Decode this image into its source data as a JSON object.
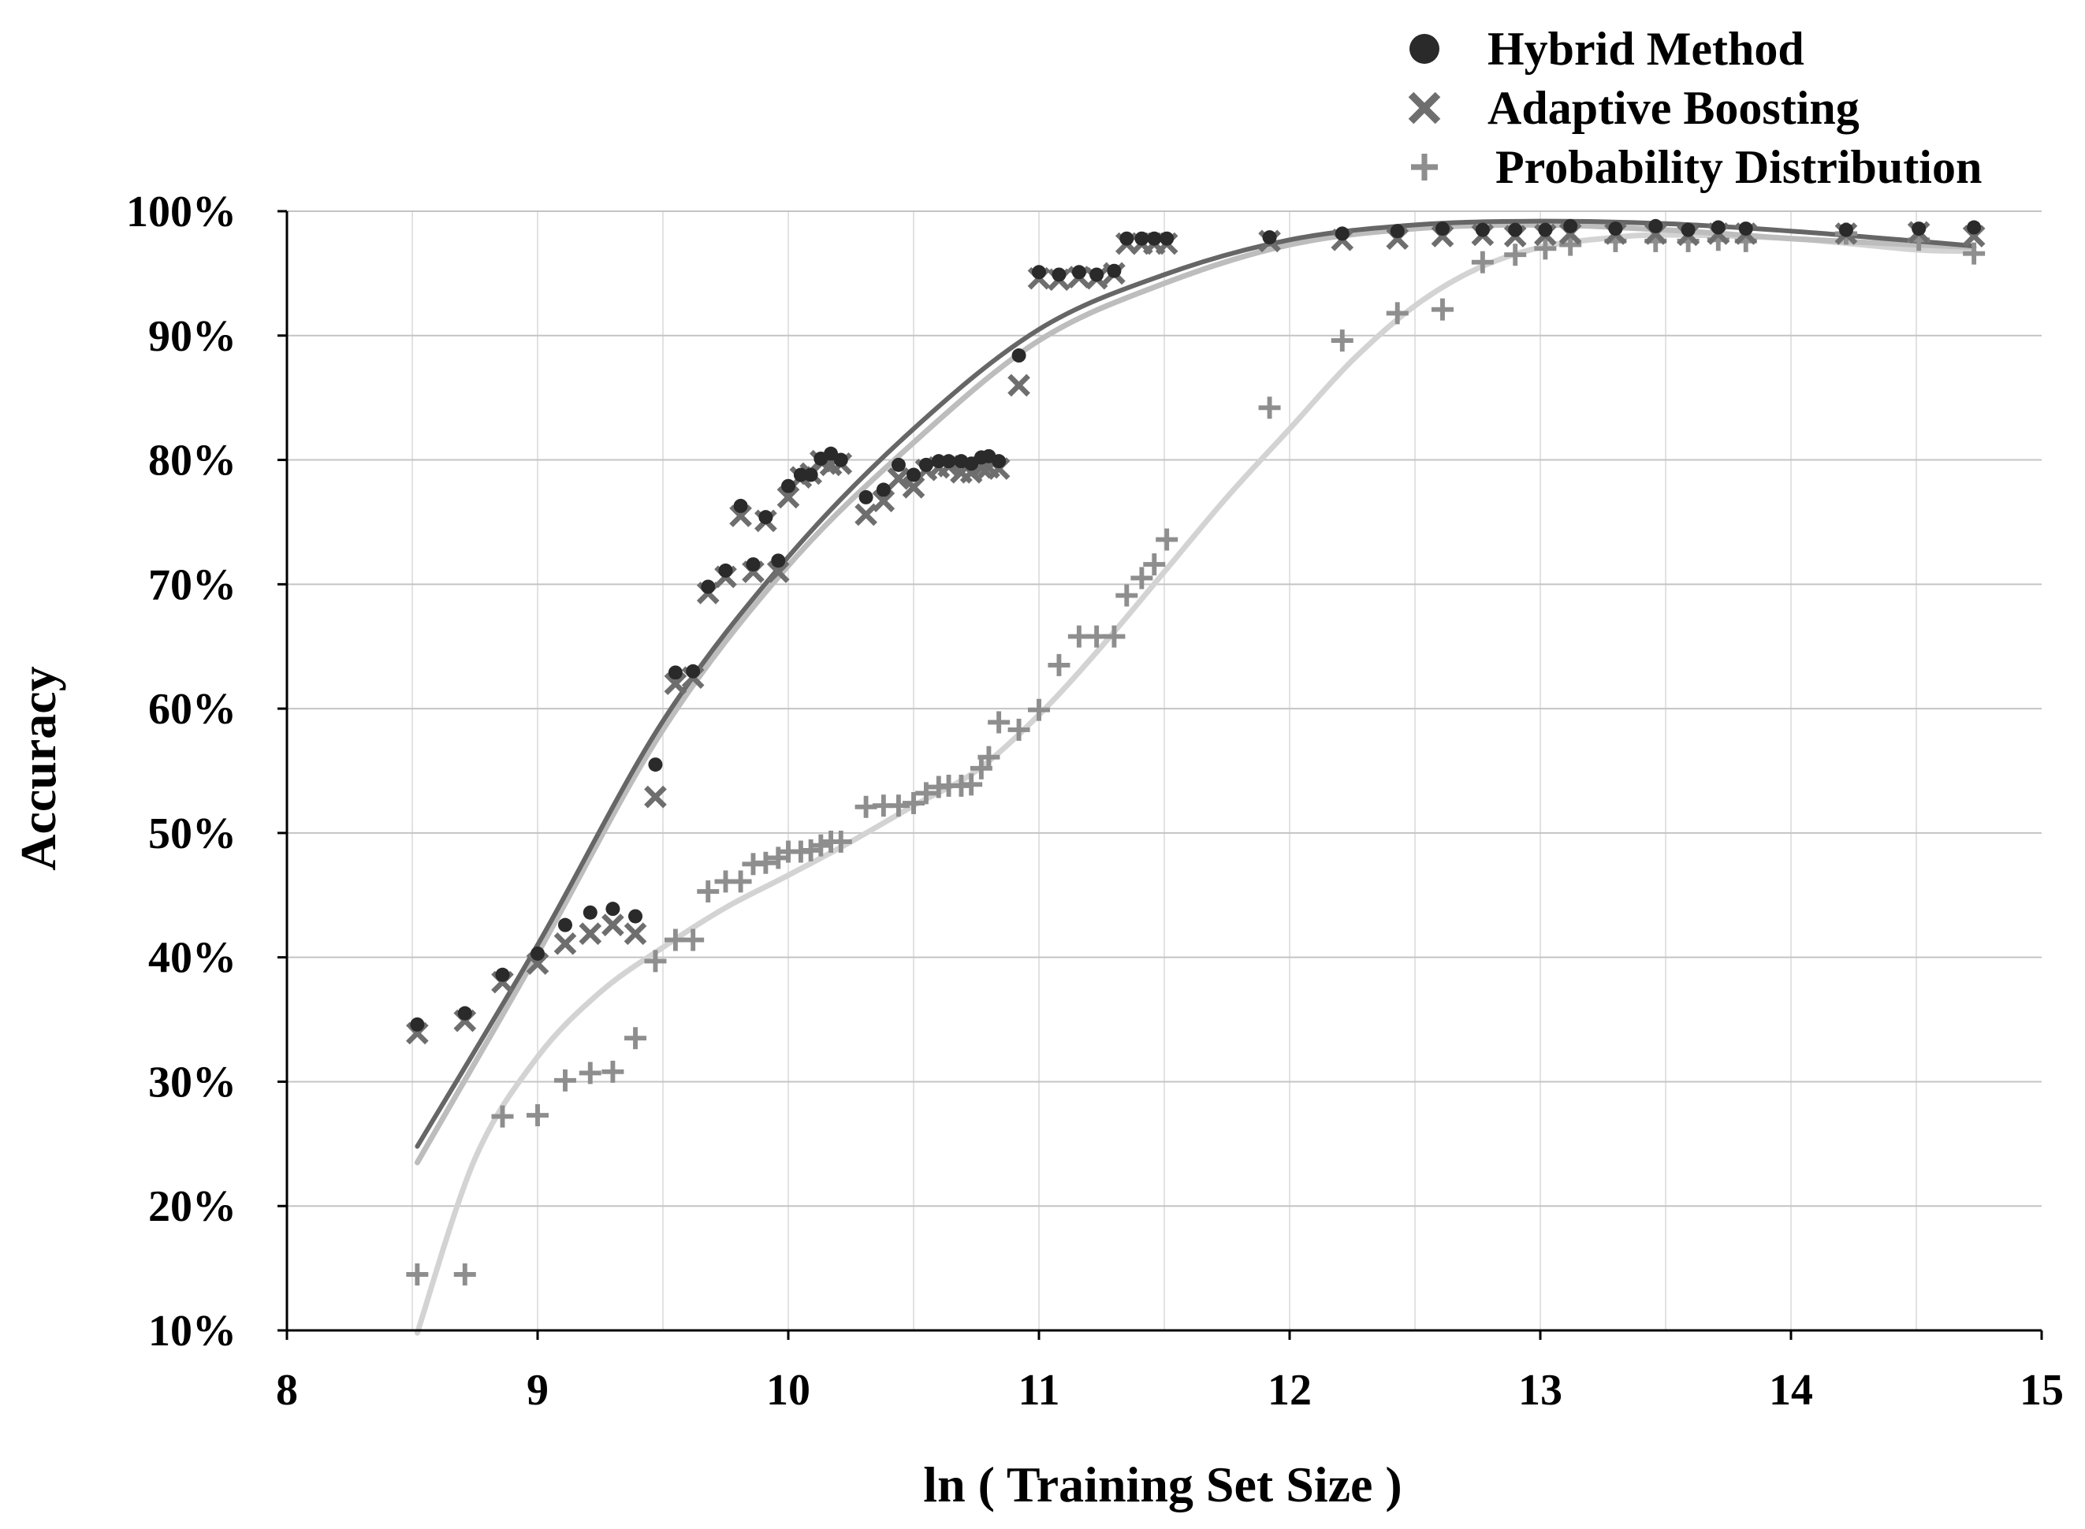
{
  "chart_data": {
    "type": "scatter",
    "xlabel": "ln ( Training Set Size )",
    "ylabel": "Accuracy",
    "xlim": [
      8,
      15
    ],
    "ylim": [
      10,
      100
    ],
    "x_ticks": [
      {
        "value": 8,
        "label": "8"
      },
      {
        "value": 9,
        "label": "9"
      },
      {
        "value": 10,
        "label": "10"
      },
      {
        "value": 11,
        "label": "11"
      },
      {
        "value": 12,
        "label": "12"
      },
      {
        "value": 13,
        "label": "13"
      },
      {
        "value": 14,
        "label": "14"
      },
      {
        "value": 15,
        "label": "15"
      }
    ],
    "y_ticks": [
      {
        "value": 10,
        "label": "10%"
      },
      {
        "value": 20,
        "label": "20%"
      },
      {
        "value": 30,
        "label": "30%"
      },
      {
        "value": 40,
        "label": "40%"
      },
      {
        "value": 50,
        "label": "50%"
      },
      {
        "value": 60,
        "label": "60%"
      },
      {
        "value": 70,
        "label": "70%"
      },
      {
        "value": 80,
        "label": "80%"
      },
      {
        "value": 90,
        "label": "90%"
      },
      {
        "value": 100,
        "label": "100%"
      }
    ],
    "grid": true,
    "legend_position": "top-right",
    "series": [
      {
        "name": "Hybrid Method",
        "marker": "circle",
        "color": "#2a2a2a",
        "x": [
          8.52,
          8.71,
          8.86,
          9.0,
          9.11,
          9.21,
          9.3,
          9.39,
          9.47,
          9.55,
          9.62,
          9.68,
          9.75,
          9.81,
          9.86,
          9.91,
          9.96,
          10.0,
          10.05,
          10.09,
          10.13,
          10.17,
          10.21,
          10.31,
          10.38,
          10.44,
          10.5,
          10.55,
          10.6,
          10.64,
          10.69,
          10.73,
          10.77,
          10.8,
          10.84,
          10.92,
          11.0,
          11.08,
          11.16,
          11.23,
          11.3,
          11.35,
          11.41,
          11.46,
          11.51,
          11.92,
          12.21,
          12.43,
          12.61,
          12.77,
          12.9,
          13.02,
          13.12,
          13.3,
          13.46,
          13.59,
          13.71,
          13.82,
          14.22,
          14.51,
          14.73
        ],
        "y": [
          34.6,
          35.5,
          38.6,
          40.3,
          42.6,
          43.6,
          43.9,
          43.3,
          55.5,
          62.9,
          63.0,
          69.8,
          71.1,
          76.3,
          71.6,
          75.4,
          71.9,
          77.9,
          78.8,
          78.8,
          80.1,
          80.5,
          80.0,
          77.0,
          77.6,
          79.6,
          78.8,
          79.6,
          79.9,
          79.9,
          79.9,
          79.7,
          80.2,
          80.3,
          79.9,
          88.4,
          95.1,
          94.9,
          95.1,
          94.9,
          95.2,
          97.8,
          97.8,
          97.8,
          97.8,
          97.9,
          98.2,
          98.4,
          98.6,
          98.5,
          98.5,
          98.5,
          98.8,
          98.6,
          98.8,
          98.5,
          98.7,
          98.6,
          98.5,
          98.6,
          98.7
        ]
      },
      {
        "name": "Adaptive Boosting",
        "marker": "x",
        "color": "#6e6e6e",
        "x": [
          8.52,
          8.71,
          8.86,
          9.0,
          9.11,
          9.21,
          9.3,
          9.39,
          9.47,
          9.55,
          9.62,
          9.68,
          9.75,
          9.81,
          9.86,
          9.91,
          9.96,
          10.0,
          10.05,
          10.09,
          10.13,
          10.17,
          10.21,
          10.31,
          10.38,
          10.44,
          10.5,
          10.55,
          10.6,
          10.64,
          10.69,
          10.73,
          10.77,
          10.8,
          10.84,
          10.92,
          11.0,
          11.08,
          11.16,
          11.23,
          11.3,
          11.35,
          11.41,
          11.46,
          11.51,
          11.92,
          12.21,
          12.43,
          12.61,
          12.77,
          12.9,
          13.02,
          13.12,
          13.3,
          13.46,
          13.59,
          13.71,
          13.82,
          14.22,
          14.51,
          14.73
        ],
        "y": [
          33.9,
          34.9,
          38.0,
          39.5,
          41.1,
          41.9,
          42.6,
          41.9,
          52.9,
          62.0,
          62.5,
          69.3,
          70.6,
          75.5,
          71.0,
          75.1,
          71.0,
          77.0,
          78.6,
          78.9,
          79.9,
          79.6,
          79.7,
          75.6,
          76.7,
          78.5,
          77.8,
          79.2,
          79.4,
          79.5,
          79.0,
          79.0,
          79.4,
          79.4,
          79.3,
          86.0,
          94.6,
          94.5,
          94.7,
          94.6,
          95.0,
          97.4,
          97.4,
          97.4,
          97.4,
          97.6,
          97.7,
          97.8,
          98.0,
          98.1,
          98.0,
          98.1,
          98.2,
          98.2,
          98.2,
          98.1,
          98.2,
          98.2,
          98.2,
          98.3,
          98.0
        ]
      },
      {
        "name": "Probability Distribution",
        "marker": "plus",
        "color": "#8e8e8e",
        "x": [
          8.52,
          8.71,
          8.86,
          9.0,
          9.11,
          9.21,
          9.3,
          9.39,
          9.47,
          9.55,
          9.62,
          9.68,
          9.75,
          9.81,
          9.86,
          9.91,
          9.96,
          10.0,
          10.05,
          10.09,
          10.13,
          10.17,
          10.21,
          10.31,
          10.38,
          10.44,
          10.5,
          10.55,
          10.6,
          10.64,
          10.69,
          10.73,
          10.77,
          10.8,
          10.84,
          10.92,
          11.0,
          11.08,
          11.16,
          11.23,
          11.3,
          11.35,
          11.41,
          11.46,
          11.51,
          11.92,
          12.21,
          12.43,
          12.61,
          12.77,
          12.9,
          13.02,
          13.12,
          13.3,
          13.46,
          13.59,
          13.71,
          13.82,
          14.22,
          14.51,
          14.73
        ],
        "y": [
          14.5,
          14.5,
          27.2,
          27.3,
          30.1,
          30.7,
          30.8,
          33.5,
          39.7,
          41.4,
          41.4,
          45.3,
          46.1,
          46.1,
          47.5,
          47.6,
          48.0,
          48.5,
          48.5,
          48.6,
          49.0,
          49.3,
          49.3,
          52.1,
          52.2,
          52.2,
          52.4,
          53.2,
          53.7,
          53.8,
          53.8,
          53.9,
          55.2,
          56.1,
          58.9,
          58.3,
          59.9,
          63.5,
          65.8,
          65.8,
          65.8,
          69.1,
          70.5,
          71.6,
          73.6,
          84.2,
          89.6,
          91.8,
          92.1,
          95.9,
          96.5,
          97.0,
          97.3,
          97.6,
          97.6,
          97.6,
          97.7,
          97.6,
          98.2,
          97.7,
          96.6
        ]
      }
    ],
    "trendlines": [
      {
        "series": "Hybrid Method",
        "color": "#666666",
        "x": [
          8.52,
          9.0,
          9.5,
          10.0,
          10.5,
          11.0,
          11.5,
          12.0,
          12.5,
          13.0,
          13.5,
          14.0,
          14.5,
          14.73
        ],
        "y": [
          24.8,
          41.0,
          59.0,
          72.2,
          82.5,
          90.5,
          94.9,
          97.7,
          98.9,
          99.2,
          99.0,
          98.4,
          97.6,
          97.2
        ]
      },
      {
        "series": "Adaptive Boosting",
        "color": "#bdbdbd",
        "x": [
          8.52,
          9.0,
          9.5,
          10.0,
          10.5,
          11.0,
          11.5,
          12.0,
          12.5,
          13.0,
          13.5,
          14.0,
          14.5,
          14.73
        ],
        "y": [
          23.5,
          40.3,
          58.3,
          71.5,
          81.4,
          89.6,
          94.2,
          97.3,
          98.6,
          98.9,
          98.5,
          97.8,
          97.3,
          97.1
        ]
      },
      {
        "series": "Probability Distribution",
        "color": "#d3d3d3",
        "x": [
          8.52,
          8.75,
          9.0,
          9.25,
          9.5,
          9.75,
          10.0,
          10.25,
          10.5,
          10.75,
          11.0,
          11.25,
          11.5,
          11.75,
          12.0,
          12.25,
          12.5,
          12.75,
          13.0,
          13.25,
          13.5,
          14.0,
          14.5,
          14.73
        ],
        "y": [
          9.8,
          23.8,
          32.0,
          37.2,
          40.8,
          44.0,
          46.6,
          49.3,
          52.2,
          55.0,
          59.5,
          65.0,
          71.0,
          77.0,
          82.5,
          88.0,
          92.4,
          95.4,
          97.1,
          97.8,
          98.1,
          97.8,
          96.9,
          96.8
        ]
      }
    ]
  }
}
